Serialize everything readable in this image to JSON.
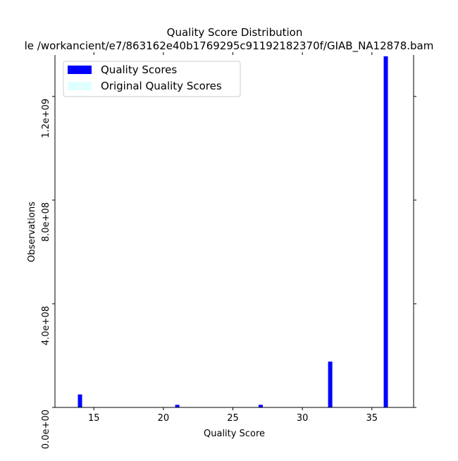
{
  "chart_data": {
    "type": "bar",
    "title": "Quality Score Distribution",
    "subtitle": "le /workancient/e7/863162e40b1769295c91192182370f/GIAB_NA12878.bam",
    "xlabel": "Quality Score",
    "ylabel": "Observations",
    "xlim": [
      12.2,
      38.0
    ],
    "ylim": [
      0,
      1360000000
    ],
    "x_ticks": [
      15,
      20,
      25,
      30,
      35
    ],
    "x_tick_labels": [
      "15",
      "20",
      "25",
      "30",
      "35"
    ],
    "y_ticks": [
      0,
      400000000,
      800000000,
      1200000000
    ],
    "y_tick_labels": [
      "0.0e+00",
      "4.0e+08",
      "8.0e+08",
      "1.2e+09"
    ],
    "grid": false,
    "legend_position": "top-left",
    "series": [
      {
        "name": "Quality Scores",
        "color": "#0000ff",
        "x": [
          14,
          21,
          27,
          32,
          36
        ],
        "values": [
          50000000,
          10000000,
          10000000,
          177000000,
          1355000000
        ]
      },
      {
        "name": "Original Quality Scores",
        "color": "#e0ffff",
        "x": [],
        "values": []
      }
    ]
  }
}
